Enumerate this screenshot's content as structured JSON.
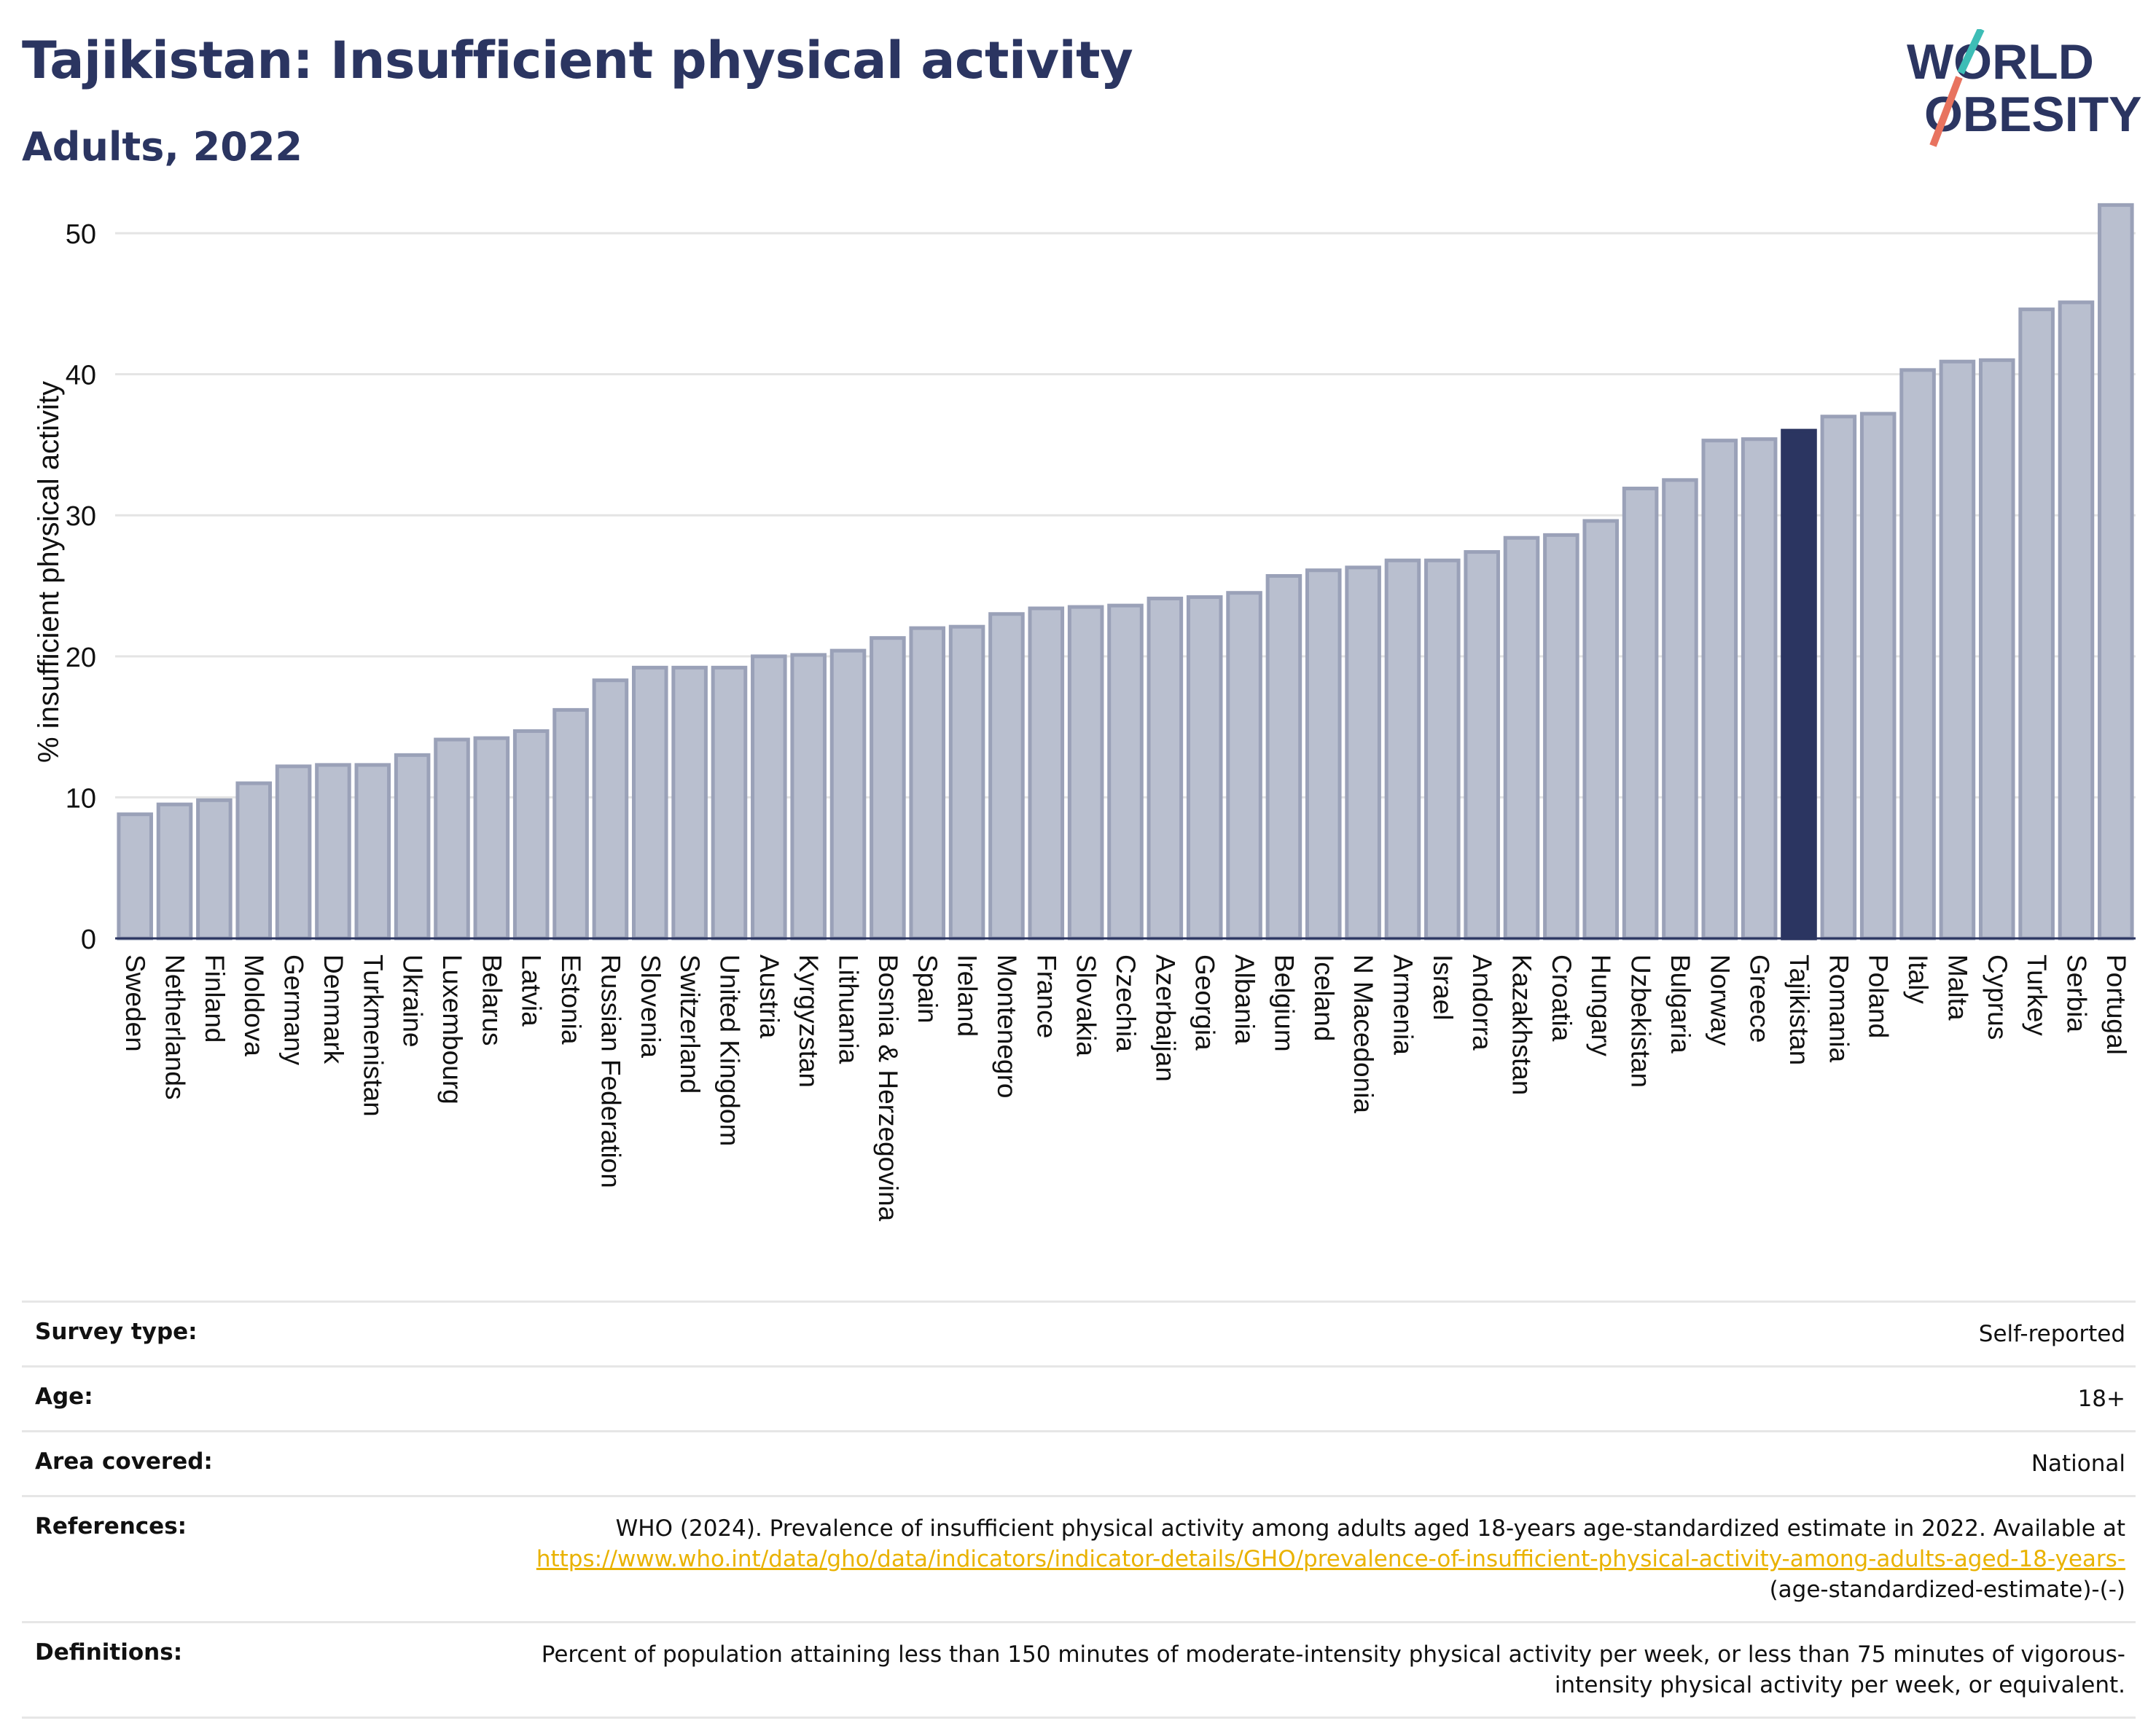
{
  "header": {
    "title": "Tajikistan: Insufficient physical activity",
    "subtitle": "Adults, 2022",
    "logo_line1": "WORLD",
    "logo_line2": "OBESITY"
  },
  "colors": {
    "bar_default": "#b9bfcf",
    "bar_stroke": "#9aa1b8",
    "bar_highlight": "#2b3561",
    "title": "#2b3561",
    "link": "#e9b200",
    "logo_teal": "#3dbdb6",
    "logo_coral": "#e8735f"
  },
  "chart_data": {
    "type": "bar",
    "title": "Tajikistan: Insufficient physical activity",
    "subtitle": "Adults, 2022",
    "xlabel": "",
    "ylabel": "% insufficient physical activity",
    "ylim": [
      0,
      53
    ],
    "yticks": [
      0,
      10,
      20,
      30,
      40,
      50
    ],
    "grid": true,
    "highlight": "Tajikistan",
    "categories": [
      "Sweden",
      "Netherlands",
      "Finland",
      "Moldova",
      "Germany",
      "Denmark",
      "Turkmenistan",
      "Ukraine",
      "Luxembourg",
      "Belarus",
      "Latvia",
      "Estonia",
      "Russian Federation",
      "Slovenia",
      "Switzerland",
      "United Kingdom",
      "Austria",
      "Kyrgyzstan",
      "Lithuania",
      "Bosnia & Herzegovina",
      "Spain",
      "Ireland",
      "Montenegro",
      "France",
      "Slovakia",
      "Czechia",
      "Azerbaijan",
      "Georgia",
      "Albania",
      "Belgium",
      "Iceland",
      "N Macedonia",
      "Armenia",
      "Israel",
      "Andorra",
      "Kazakhstan",
      "Croatia",
      "Hungary",
      "Uzbekistan",
      "Bulgaria",
      "Norway",
      "Greece",
      "Tajikistan",
      "Romania",
      "Poland",
      "Italy",
      "Malta",
      "Cyprus",
      "Turkey",
      "Serbia",
      "Portugal"
    ],
    "values": [
      8.8,
      9.5,
      9.8,
      11.0,
      12.2,
      12.3,
      12.3,
      13.0,
      14.1,
      14.2,
      14.7,
      16.2,
      18.3,
      19.2,
      19.2,
      19.2,
      20.0,
      20.1,
      20.4,
      21.3,
      22.0,
      22.1,
      23.0,
      23.4,
      23.5,
      23.6,
      24.1,
      24.2,
      24.5,
      25.7,
      26.1,
      26.3,
      26.8,
      26.8,
      27.4,
      28.4,
      28.6,
      29.6,
      31.9,
      32.5,
      35.3,
      35.4,
      36.0,
      37.0,
      37.2,
      40.3,
      40.9,
      41.0,
      44.6,
      45.1,
      52.0
    ]
  },
  "info": {
    "rows": [
      {
        "label": "Survey type:",
        "value": "Self-reported"
      },
      {
        "label": "Age:",
        "value": "18+"
      },
      {
        "label": "Area covered:",
        "value": "National"
      }
    ],
    "references": {
      "label": "References:",
      "text": "WHO (2024). Prevalence of insufficient physical activity among adults aged 18-years age-standardized estimate in 2022. Available at",
      "link": "https://www.who.int/data/gho/data/indicators/indicator-details/GHO/prevalence-of-insufficient-physical-activity-among-adults-aged-18-years-",
      "suffix": "(age-standardized-estimate)-(-)"
    },
    "definitions": {
      "label": "Definitions:",
      "text": "Percent of population attaining less than 150 minutes of moderate-intensity physical activity per week, or less than 75 minutes of vigorous-intensity physical activity per week, or equivalent."
    }
  }
}
